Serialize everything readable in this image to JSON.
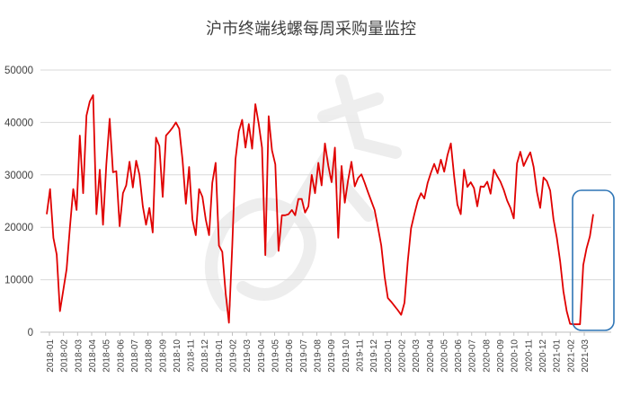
{
  "chart_data": {
    "type": "line",
    "title": "沪市终端线螺每周采购量监控",
    "xlabel": "",
    "ylabel": "",
    "ylim": [
      0,
      50000
    ],
    "yticks": [
      "0",
      "10000",
      "20000",
      "30000",
      "40000",
      "50000"
    ],
    "grid": true,
    "legend": "none",
    "x_tick_labels": [
      "2018-01",
      "2018-02",
      "2018-03",
      "2018-04",
      "2018-05",
      "2018-06",
      "2018-07",
      "2018-08",
      "2018-09",
      "2018-10",
      "2018-11",
      "2018-12",
      "2019-01",
      "2019-02",
      "2019-03",
      "2019-04",
      "2019-05",
      "2019-06",
      "2019-07",
      "2019-08",
      "2019-09",
      "2019-10",
      "2019-11",
      "2019-12",
      "2020-01",
      "2020-02",
      "2020-03",
      "2020-04",
      "2020-05",
      "2020-06",
      "2020-07",
      "2020-08",
      "2020-09",
      "2020-10",
      "2020-11",
      "2020-12",
      "2021-01",
      "2021-02",
      "2021-03"
    ],
    "series": [
      {
        "name": "",
        "color": "#e00000",
        "values": [
          22500,
          27300,
          18000,
          14800,
          4000,
          8000,
          12000,
          20000,
          27300,
          23300,
          37500,
          26500,
          41300,
          44000,
          45200,
          22500,
          31000,
          20500,
          32000,
          40700,
          30500,
          30700,
          20200,
          26500,
          28000,
          32500,
          27600,
          32700,
          30000,
          24000,
          20500,
          23700,
          19000,
          37100,
          35500,
          25800,
          37500,
          38200,
          39000,
          40000,
          38800,
          32800,
          24500,
          31500,
          21500,
          18500,
          27300,
          25800,
          21500,
          18500,
          28500,
          32300,
          16500,
          15300,
          7500,
          1800,
          16500,
          33000,
          38300,
          40500,
          35200,
          39700,
          35000,
          43500,
          39800,
          35200,
          14700,
          41200,
          34700,
          32000,
          15500,
          22300,
          22300,
          22500,
          23300,
          22300,
          25400,
          25400,
          22800,
          24000,
          30000,
          26500,
          32300,
          28000,
          36000,
          31800,
          28600,
          35200,
          18000,
          31700,
          24700,
          29000,
          32500,
          27800,
          29400,
          30100,
          28500,
          26700,
          25000,
          23300,
          20000,
          16500,
          10600,
          6500,
          5800,
          5000,
          4200,
          3300,
          5600,
          13400,
          19800,
          22500,
          25000,
          26500,
          25500,
          28500,
          30400,
          32100,
          30300,
          32900,
          30600,
          33800,
          36000,
          29800,
          24300,
          22500,
          31000,
          27700,
          28600,
          27500,
          24000,
          27800,
          27700,
          28700,
          26400,
          31000,
          29800,
          28700,
          27100,
          25100,
          23700,
          21700,
          32200,
          34400,
          31700,
          33100,
          34300,
          31500,
          26700,
          23700,
          29500,
          28800,
          27000,
          21500,
          18000,
          13500,
          7800,
          4000,
          1600,
          1500,
          1500,
          1500,
          12800,
          16000,
          18300,
          22500
        ]
      }
    ],
    "annotation": {
      "shape": "rounded-rectangle",
      "color": "#2e75b6",
      "x_range": [
        "2021-02",
        "2021-03"
      ]
    }
  }
}
